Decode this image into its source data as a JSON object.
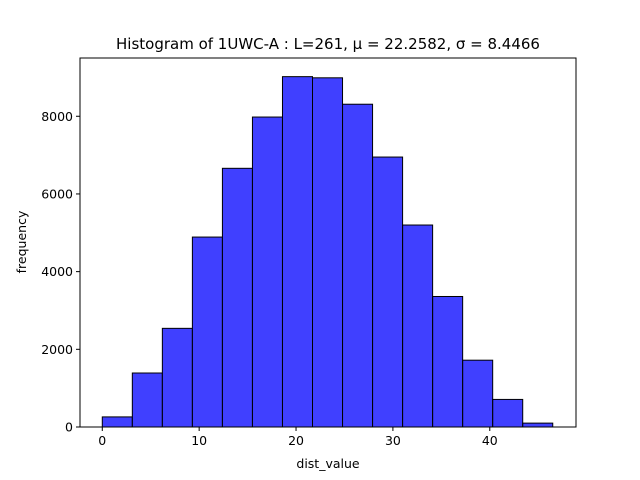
{
  "chart_data": {
    "type": "bar",
    "title": "Histogram of 1UWC-A : L=261, μ = 22.2582, σ = 8.4466",
    "xlabel": "dist_value",
    "ylabel": "frequency",
    "xlim": [
      -2.3,
      48.9
    ],
    "ylim": [
      0,
      9500
    ],
    "x_ticks": [
      0,
      10,
      20,
      30,
      40
    ],
    "y_ticks": [
      0,
      2000,
      4000,
      6000,
      8000
    ],
    "bin_edges": [
      0.0,
      3.1,
      6.2,
      9.3,
      12.4,
      15.5,
      18.6,
      21.7,
      24.8,
      27.9,
      31.0,
      34.1,
      37.2,
      40.3,
      43.4,
      46.5
    ],
    "values": [
      260,
      1390,
      2540,
      4890,
      6660,
      7980,
      9020,
      8990,
      8310,
      6950,
      5200,
      3360,
      1720,
      710,
      100
    ],
    "bar_color": "#0000ff",
    "bar_opacity": 0.75,
    "edge_color": "#000000",
    "grid": false
  }
}
